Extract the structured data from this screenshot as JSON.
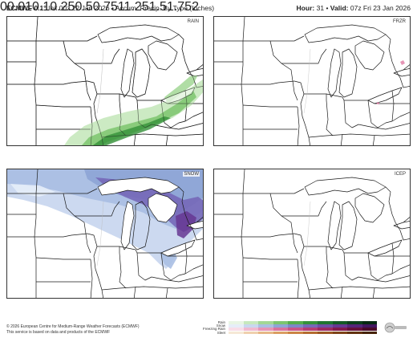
{
  "header": {
    "model": "ECMWF 0.1°",
    "init": "Init 00z 22 Jan 2026",
    "sep": "•",
    "product": "Accum. Precip. By Type (Inches)",
    "hour_label": "Hour:",
    "hour_value": "31",
    "valid_label": "Valid:",
    "valid_value": "07z Fri 23 Jan 2026"
  },
  "panels": {
    "rain": "RAIN",
    "frzr": "FRZR",
    "snow": "SNOW",
    "icep": "ICEP"
  },
  "footer": {
    "line1": "© 2026 European Centre for Medium-Range Weather Forecasts (ECMWF)",
    "line2": "This service is based on data and products of the ECMWF"
  },
  "legend": {
    "ticks": [
      "0",
      "0.01",
      "0.1",
      "0.25",
      "0.5",
      "0.75",
      "1",
      "1.25",
      "1.5",
      "1.75",
      "2"
    ],
    "rows": [
      "Rain",
      "Snow",
      "Freezing Rain",
      "Sleet"
    ],
    "colors": {
      "rain": [
        "#e8f5e4",
        "#c6e8bd",
        "#a2d795",
        "#7cc56f",
        "#55ad4c",
        "#35913a",
        "#1f7530",
        "#145a26",
        "#0c401c",
        "#062a12"
      ],
      "snow": [
        "#e6edf8",
        "#c9d7ef",
        "#aabfe3",
        "#8ea5d6",
        "#7d88c7",
        "#7668b8",
        "#6f4ea6",
        "#663793",
        "#55257a",
        "#411760"
      ],
      "frzr": [
        "#f8dde8",
        "#f0b9cf",
        "#e695b6",
        "#d9739d",
        "#c95587",
        "#b53d73",
        "#9c2a60",
        "#81194c",
        "#64103a",
        "#480a28"
      ],
      "icep": [
        "#f6e8d6",
        "#efd0ad",
        "#e6b785",
        "#da9d62",
        "#cb8444",
        "#b46c30",
        "#9a5622",
        "#7e4318",
        "#62320f",
        "#462307"
      ]
    }
  },
  "logo": "weatherbell"
}
